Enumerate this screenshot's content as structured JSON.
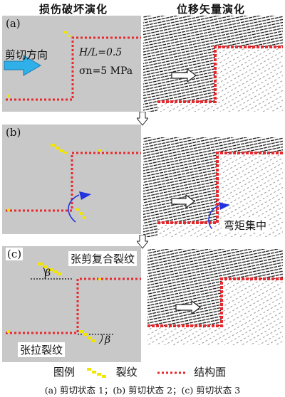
{
  "headers": {
    "left": "损伤破坏演化",
    "right": "位移矢量演化"
  },
  "panels": {
    "a": {
      "label": "(a)"
    },
    "b": {
      "label": "(b)"
    },
    "c": {
      "label": "(c)"
    }
  },
  "annotations": {
    "shear_direction": "剪切方向",
    "hl_ratio": "H/L=0.5",
    "sigma_n": "σn=5 MPa",
    "moment_concentration": "弯矩集中",
    "tension_shear_crack": "张剪复合裂纹",
    "tension_crack": "张拉裂纹",
    "beta_symbol": "β"
  },
  "legend": {
    "title": "图例",
    "crack": "裂纹",
    "structural_plane": "结构面"
  },
  "caption": "(a) 剪切状态 1；(b) 剪切状态 2；(c) 剪切状态 3",
  "colors": {
    "crack": "#f2e600",
    "structural_plane": "#e8282d",
    "arrow": "#2fb0e8",
    "rotation": "#2233dd",
    "background": "#c8c8c8"
  }
}
